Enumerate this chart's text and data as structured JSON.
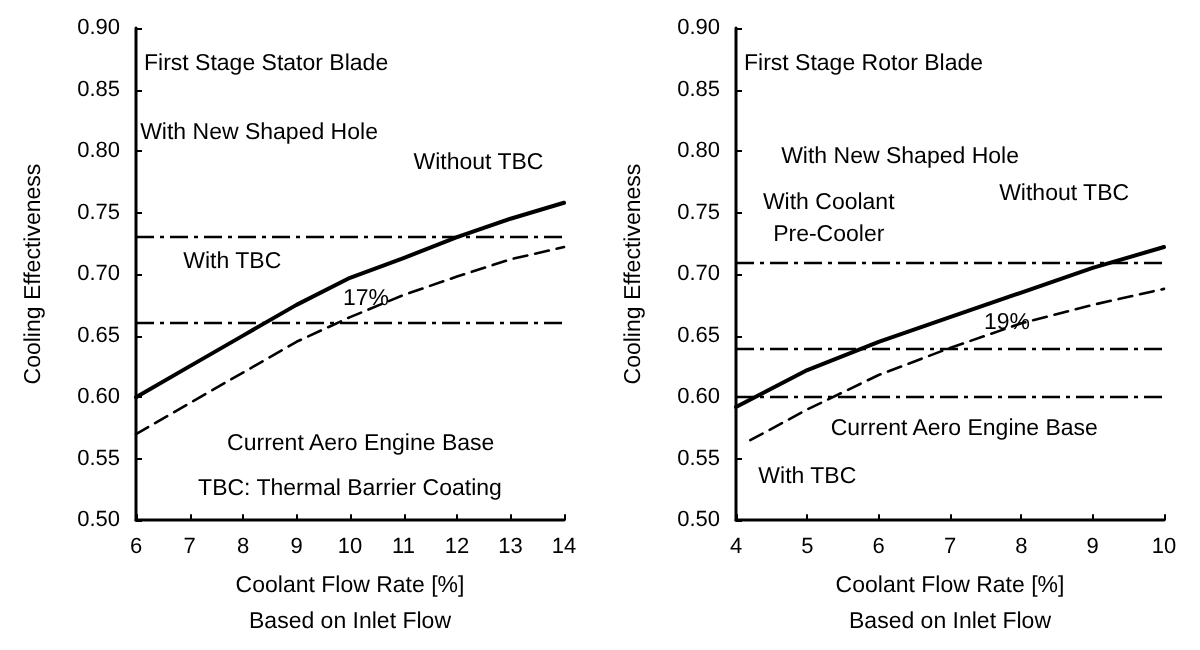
{
  "chart_data": [
    {
      "type": "line",
      "title": "First Stage Stator Blade",
      "xlabel": "Coolant Flow Rate [%]\nBased on Inlet Flow",
      "ylabel": "Cooling Effectiveness",
      "xlim": [
        6,
        14
      ],
      "xticks": [
        6,
        7,
        8,
        9,
        10,
        11,
        12,
        13,
        14
      ],
      "ylim": [
        0.5,
        0.9
      ],
      "yticks": [
        {
          "value": 0.5,
          "label": "0.50"
        },
        0.55,
        {
          "value": 0.6,
          "label": "0.60"
        },
        0.65,
        {
          "value": 0.7,
          "label": "0.70"
        },
        0.75,
        {
          "value": 0.8,
          "label": "0.80"
        },
        0.85,
        {
          "value": 0.9,
          "label": "0.90"
        }
      ],
      "grid": false,
      "marker": "none",
      "series": [
        {
          "color": "#000000",
          "line_style": "solid",
          "x": [
            6,
            7,
            8,
            9,
            10,
            11,
            12,
            13,
            14
          ],
          "values": [
            0.6,
            0.625,
            0.65,
            0.675,
            0.697,
            0.713,
            0.73,
            0.745,
            0.758
          ]
        },
        {
          "color": "#000000",
          "line_style": "dashed",
          "x": [
            6,
            7,
            8,
            9,
            10,
            11,
            12,
            13,
            14
          ],
          "values": [
            0.57,
            0.595,
            0.62,
            0.645,
            0.665,
            0.683,
            0.698,
            0.712,
            0.722
          ]
        }
      ],
      "ref_lines": [
        {
          "axis": "y",
          "value": 0.73,
          "line_style": "dashed"
        },
        {
          "axis": "y",
          "value": 0.66,
          "line_style": "dashed"
        }
      ],
      "annotations": [
        "With New Shaped Hole",
        "Without TBC",
        "With TBC",
        {
          "text": "17%",
          "x": 10.3,
          "y": 0.68
        },
        "Current Aero Engine Base",
        "TBC: Thermal Barrier Coating"
      ]
    },
    {
      "type": "line",
      "title": "First Stage Rotor Blade",
      "xlabel": "Coolant Flow Rate [%]\nBased on Inlet Flow",
      "ylabel": "Cooling Effectiveness",
      "xlim": [
        4,
        10
      ],
      "xticks": [
        4,
        5,
        6,
        7,
        8,
        9,
        10
      ],
      "ylim": [
        0.5,
        0.9
      ],
      "yticks": [
        {
          "value": 0.5,
          "label": "0.50"
        },
        0.55,
        {
          "value": 0.6,
          "label": "0.60"
        },
        0.65,
        {
          "value": 0.7,
          "label": "0.70"
        },
        0.75,
        {
          "value": 0.8,
          "label": "0.80"
        },
        0.85,
        {
          "value": 0.9,
          "label": "0.90"
        }
      ],
      "grid": false,
      "marker": "none",
      "series": [
        {
          "color": "#000000",
          "line_style": "solid",
          "x": [
            4,
            5,
            6,
            7,
            8,
            9,
            10
          ],
          "values": [
            0.592,
            0.622,
            0.645,
            0.665,
            0.685,
            0.705,
            0.722
          ]
        },
        {
          "color": "#000000",
          "line_style": "dashed",
          "x": [
            4.2,
            5,
            6,
            7,
            8,
            9,
            10
          ],
          "values": [
            0.565,
            0.59,
            0.618,
            0.64,
            0.66,
            0.675,
            0.688
          ]
        }
      ],
      "ref_lines": [
        {
          "axis": "y",
          "value": 0.71,
          "line_style": "dashed"
        },
        {
          "axis": "y",
          "value": 0.64,
          "line_style": "dashed"
        },
        {
          "axis": "y",
          "value": 0.6,
          "line_style": "dashed"
        }
      ],
      "annotations": [
        "With New Shaped Hole",
        "Without TBC",
        "With Coolant\nPre-Cooler",
        {
          "text": "19%",
          "x": 7.8,
          "y": 0.66
        },
        "Current Aero Engine Base",
        "With TBC"
      ]
    }
  ]
}
